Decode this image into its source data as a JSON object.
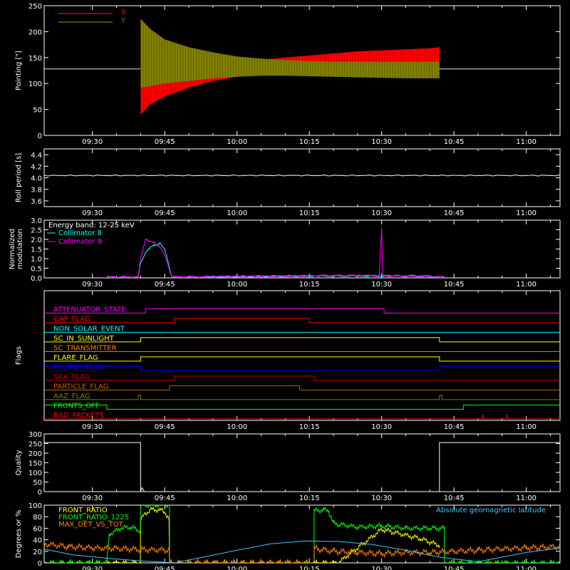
{
  "colors": {
    "background": "#000000",
    "axis": "#ffffff",
    "red": "#ff0000",
    "olive": "#808000",
    "cyan": "#00ffff",
    "magenta": "#ff00ff",
    "white": "#ffffff",
    "green": "#00ff00",
    "yellow": "#ffff00",
    "orange": "#ff8000",
    "blue": "#0000ff",
    "brown": "#c86400",
    "darkred": "#c80000",
    "redorange": "#ff4000",
    "lightblue": "#40c8ff"
  },
  "time_ticks": [
    "09:30",
    "09:45",
    "10:00",
    "10:15",
    "10:30",
    "10:45",
    "11:00"
  ],
  "time_tick_minutes": [
    570,
    585,
    600,
    615,
    630,
    645,
    660
  ],
  "time_range_minutes": [
    560,
    667
  ],
  "chart_data": [
    {
      "id": "pointing",
      "type": "line",
      "ylabel": "Pointing [\"]",
      "ylim": [
        0,
        250
      ],
      "yticks": [
        0,
        50,
        100,
        150,
        200,
        250
      ],
      "legend": "top-left",
      "series": [
        {
          "name": "X",
          "color": "red",
          "x": [
            580.0,
            582.0,
            585.0,
            590.0,
            595.0,
            600.0,
            605.0,
            610.0,
            615.0,
            620.0,
            625.0,
            630.0,
            635.0,
            640.0,
            642.0
          ],
          "ymin": [
            40,
            60,
            75,
            92,
            105,
            113,
            118,
            120,
            122,
            124,
            125,
            126,
            128,
            130,
            131
          ],
          "ymax": [
            125,
            130,
            134,
            137,
            140,
            143,
            146,
            150,
            154,
            158,
            162,
            164,
            166,
            168,
            170
          ]
        },
        {
          "name": "Y",
          "color": "olive",
          "x": [
            580.0,
            582.0,
            585.0,
            590.0,
            595.0,
            600.0,
            605.0,
            610.0,
            615.0,
            620.0,
            625.0,
            630.0,
            635.0,
            640.0,
            642.0
          ],
          "ymin": [
            92,
            95,
            100,
            105,
            110,
            113,
            115,
            115,
            114,
            113,
            112,
            111,
            110,
            110,
            110
          ],
          "ymax": [
            225,
            205,
            185,
            170,
            160,
            152,
            148,
            145,
            143,
            142,
            142,
            142,
            142,
            142,
            142
          ]
        }
      ],
      "baseline": 128
    },
    {
      "id": "roll",
      "type": "line",
      "ylabel": "Roll period [s]",
      "ylim": [
        3.5,
        4.5
      ],
      "yticks": [
        3.6,
        3.8,
        4.0,
        4.2,
        4.4
      ],
      "series": [
        {
          "name": "",
          "color": "white",
          "x": [
            560.0,
            667.0
          ],
          "y": [
            4.04,
            4.04
          ]
        }
      ]
    },
    {
      "id": "modulation",
      "type": "line",
      "ylabel": "Normalized modulation",
      "ylim": [
        0.0,
        3.0
      ],
      "yticks": [
        0.0,
        0.5,
        1.0,
        1.5,
        2.0,
        2.5,
        3.0
      ],
      "legend_title": "Energy band: 12-25 keV",
      "series": [
        {
          "name": "Collimator 8",
          "color": "cyan",
          "x": [
            573.0,
            579.5,
            580.0,
            581.0,
            582.0,
            583.0,
            584.0,
            585.0,
            585.5,
            586.0,
            586.5,
            594.0,
            616.0,
            617.0,
            625.0,
            632.0,
            638.0,
            643.0
          ],
          "y": [
            0.05,
            0.05,
            0.8,
            1.3,
            1.6,
            1.7,
            1.8,
            1.5,
            1.0,
            0.5,
            0.05,
            0.05,
            0.1,
            0.1,
            0.1,
            0.1,
            0.1,
            0.05
          ]
        },
        {
          "name": "Collimator 9",
          "color": "magenta",
          "x": [
            573.0,
            579.5,
            580.0,
            581.0,
            582.0,
            583.0,
            584.0,
            585.0,
            585.5,
            586.0,
            586.5,
            616.0,
            617.0,
            629.5,
            630.0,
            630.2,
            643.0
          ],
          "y": [
            0.05,
            0.05,
            1.0,
            2.0,
            1.9,
            1.8,
            1.6,
            1.2,
            0.8,
            0.4,
            0.05,
            0.1,
            0.12,
            0.12,
            2.6,
            0.1,
            0.05
          ]
        }
      ]
    },
    {
      "id": "flags",
      "type": "line",
      "ylabel": "Flags",
      "flags": [
        {
          "name": "ATTENUATOR_STATE",
          "color": "magenta",
          "steps": [
            [
              560.0,
              0
            ],
            [
              581.0,
              1
            ],
            [
              630.5,
              0
            ],
            [
              667.0,
              0
            ]
          ]
        },
        {
          "name": "GAP_FLAG",
          "color": "red",
          "steps": [
            [
              560.0,
              0
            ],
            [
              587.0,
              1
            ],
            [
              615.0,
              0
            ],
            [
              667.0,
              0
            ]
          ]
        },
        {
          "name": "NON_SOLAR_EVENT",
          "color": "cyan",
          "steps": [
            [
              560.0,
              0
            ],
            [
              667.0,
              0
            ]
          ]
        },
        {
          "name": "SC_IN_SUNLIGHT",
          "color": "yellow",
          "steps": [
            [
              560.0,
              0
            ],
            [
              580.0,
              1
            ],
            [
              642.0,
              0
            ],
            [
              667.0,
              0
            ]
          ]
        },
        {
          "name": "SC_TRANSMITTER",
          "color": "orange",
          "steps": [
            [
              560.0,
              0
            ],
            [
              667.0,
              0
            ]
          ]
        },
        {
          "name": "FLARE_FLAG",
          "color": "yellow",
          "steps": [
            [
              560.0,
              0
            ],
            [
              580.0,
              1
            ],
            [
              642.0,
              0
            ],
            [
              667.0,
              0
            ]
          ]
        },
        {
          "name": "ECLIPSE_FLAG",
          "color": "blue",
          "steps": [
            [
              560.0,
              1
            ],
            [
              580.0,
              0
            ],
            [
              642.0,
              1
            ],
            [
              667.0,
              1
            ]
          ]
        },
        {
          "name": "SAA_FLAG",
          "color": "darkred",
          "steps": [
            [
              560.0,
              0
            ],
            [
              587.0,
              1
            ],
            [
              616.0,
              0
            ],
            [
              667.0,
              0
            ]
          ]
        },
        {
          "name": "PARTICLE_FLAG",
          "color": "brown",
          "steps": [
            [
              560.0,
              0
            ],
            [
              586.0,
              1
            ],
            [
              613.0,
              0
            ],
            [
              667.0,
              0
            ]
          ]
        },
        {
          "name": "AAZ_FLAG",
          "color": "olive",
          "steps": [
            [
              560.0,
              0
            ],
            [
              579.5,
              1
            ],
            [
              580.0,
              0
            ],
            [
              642.0,
              1
            ],
            [
              642.5,
              0
            ],
            [
              667.0,
              0
            ]
          ]
        },
        {
          "name": "FRONTS_OFF",
          "color": "green",
          "steps": [
            [
              560.0,
              1
            ],
            [
              573.0,
              0
            ],
            [
              647.0,
              1
            ],
            [
              667.0,
              1
            ]
          ]
        },
        {
          "name": "BAD_PACKETS",
          "color": "red",
          "steps": [
            [
              560.0,
              0
            ],
            [
              667.0,
              0
            ]
          ],
          "spikes": [
            651.0,
            656.0
          ]
        }
      ]
    },
    {
      "id": "quality",
      "type": "line",
      "ylabel": "Quality",
      "ylim": [
        0,
        300
      ],
      "yticks": [
        0,
        50,
        100,
        150,
        200,
        250,
        300
      ],
      "series": [
        {
          "name": "",
          "color": "white",
          "x": [
            560.0,
            580.0,
            580.0,
            580.3,
            580.8,
            581.0,
            642.0,
            642.0,
            667.0
          ],
          "y": [
            255,
            255,
            0,
            20,
            0,
            0,
            0,
            255,
            255
          ]
        }
      ]
    },
    {
      "id": "degrees",
      "type": "line",
      "ylabel": "Degrees or %",
      "ylim": [
        0,
        100
      ],
      "yticks": [
        0,
        20,
        40,
        60,
        80,
        100
      ],
      "annotation": "Absolute geomagnetic latitude",
      "series": [
        {
          "name": "FRONT_RATIO",
          "color": "yellow",
          "x": [
            560.0,
            580.0,
            580.0,
            581.0,
            582.0,
            584.0,
            585.0,
            586.0,
            586.0,
            621.0,
            630.0,
            638.0,
            642.0
          ],
          "y": [
            0,
            0,
            75,
            85,
            92,
            92,
            88,
            75,
            0,
            0,
            58,
            42,
            30
          ]
        },
        {
          "name": "FRONT_RATIO_1225",
          "color": "green",
          "x": [
            560.0,
            573.0,
            573.5,
            576.0,
            578.0,
            580.0,
            580.0,
            586.0,
            586.0,
            616.0,
            616.0,
            618.0,
            619.0,
            620.0,
            625.0,
            630.0,
            635.0,
            640.0,
            643.0,
            643.0,
            667.0
          ],
          "y": [
            0,
            0,
            50,
            60,
            62,
            55,
            100,
            100,
            0,
            0,
            90,
            92,
            90,
            68,
            62,
            64,
            60,
            60,
            60,
            0,
            0
          ]
        },
        {
          "name": "MAX_DET_VS_TOT",
          "color": "orange",
          "x": [
            560.0,
            565.0,
            570.0,
            575.0,
            580.0,
            586.0,
            586.0,
            616.0,
            616.0,
            620.0,
            625.0,
            630.0,
            635.0,
            640.0,
            645.0,
            650.0,
            655.0,
            660.0,
            667.0
          ],
          "y": [
            33,
            28,
            26,
            25,
            23,
            22,
            0,
            0,
            25,
            20,
            18,
            16,
            18,
            18,
            20,
            22,
            24,
            26,
            28
          ]
        },
        {
          "name": "Absolute geomagnetic latitude",
          "color": "lightblue",
          "x": [
            560.0,
            566.0,
            573.0,
            579.0,
            583.0,
            587.0,
            590.0,
            600.0,
            607.0,
            614.0,
            621.0,
            628.0,
            635.0,
            642.0,
            650.0,
            660.0,
            667.0
          ],
          "y": [
            24,
            14,
            8,
            4,
            2,
            0,
            5,
            22,
            33,
            38,
            37,
            32,
            22,
            10,
            2,
            18,
            26
          ]
        }
      ]
    }
  ]
}
